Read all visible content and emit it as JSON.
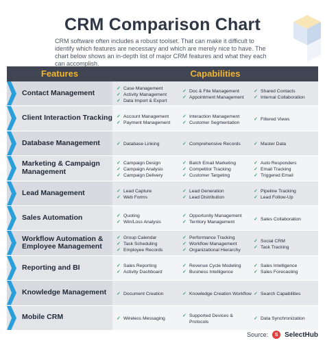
{
  "title": "CRM Comparison Chart",
  "intro": "CRM software often includes a robust toolset. That can make it difficult to identify which features are necessary and which are merely nice to have. The chart below shows an in-depth list of major CRM features and what they each can accomplish.",
  "headers": {
    "features": "Features",
    "capabilities": "Capabilities"
  },
  "rows": [
    {
      "feature": "Contact Management",
      "cols": [
        [
          "Case Management",
          "Activity Management",
          "Data Import & Export"
        ],
        [
          "Doc & File Management",
          "Appointment Management"
        ],
        [
          "Shared Contacts",
          "Internal Collaboration"
        ]
      ]
    },
    {
      "feature": "Client Interaction Tracking",
      "cols": [
        [
          "Account Management",
          "Payment Management"
        ],
        [
          "Interaction Management",
          "Customer Segmentation"
        ],
        [
          "Filtered Views"
        ]
      ]
    },
    {
      "feature": "Database Management",
      "cols": [
        [
          "Database Linking"
        ],
        [
          "Comprehensive Records"
        ],
        [
          "Master Data"
        ]
      ]
    },
    {
      "feature": "Marketing & Campaign Management",
      "cols": [
        [
          "Campaign Design",
          "Campaign Analysis",
          "Campaign Delivery"
        ],
        [
          "Batch Email Marketing",
          "Competitor Tracking",
          "Customer Targeting"
        ],
        [
          "Auto Responders",
          "Email Tracking",
          "Triggered Email"
        ]
      ]
    },
    {
      "feature": "Lead Management",
      "cols": [
        [
          "Lead Capture",
          "Web Forms"
        ],
        [
          "Lead Generation",
          "Lead Distribution"
        ],
        [
          "Pipeline Tracking",
          "Lead Follow-Up"
        ]
      ]
    },
    {
      "feature": "Sales Automation",
      "cols": [
        [
          "Quoting",
          "Win/Loss Analysis"
        ],
        [
          "Opportunity Management",
          "Territory Management"
        ],
        [
          "Sales Collaboration"
        ]
      ]
    },
    {
      "feature": "Workflow Automation & Employee Management",
      "cols": [
        [
          "Group Calendar",
          "Task Scheduling",
          "Employee Records"
        ],
        [
          "Performance Tracking",
          "Workflow Management",
          "Organizational Hierarchy"
        ],
        [
          "Social CRM",
          "Task Tracking"
        ]
      ]
    },
    {
      "feature": "Reporting and BI",
      "cols": [
        [
          "Sales Reporting",
          "Activity Dashboard"
        ],
        [
          "Revenue Cycle Modeling",
          "Business Intelligence"
        ],
        [
          "Sales Intelligence",
          "Sales Forecasting"
        ]
      ]
    },
    {
      "feature": "Knowledge Management",
      "cols": [
        [
          "Document Creation"
        ],
        [
          "Knowledge Creation Workflow"
        ],
        [
          "Search Capabilities"
        ]
      ]
    },
    {
      "feature": "Mobile CRM",
      "cols": [
        [
          "Wireless Messaging"
        ],
        [
          "Supported Devices & Protocols"
        ],
        [
          "Data Synchronization"
        ]
      ]
    }
  ],
  "source": {
    "label": "Source:",
    "brand": "SelectHub",
    "logo_char": "S"
  },
  "colors": {
    "header_bg": "#3f4553",
    "header_text": "#f2b531",
    "chevron": "#2b9fd9",
    "check": "#2aa876"
  }
}
